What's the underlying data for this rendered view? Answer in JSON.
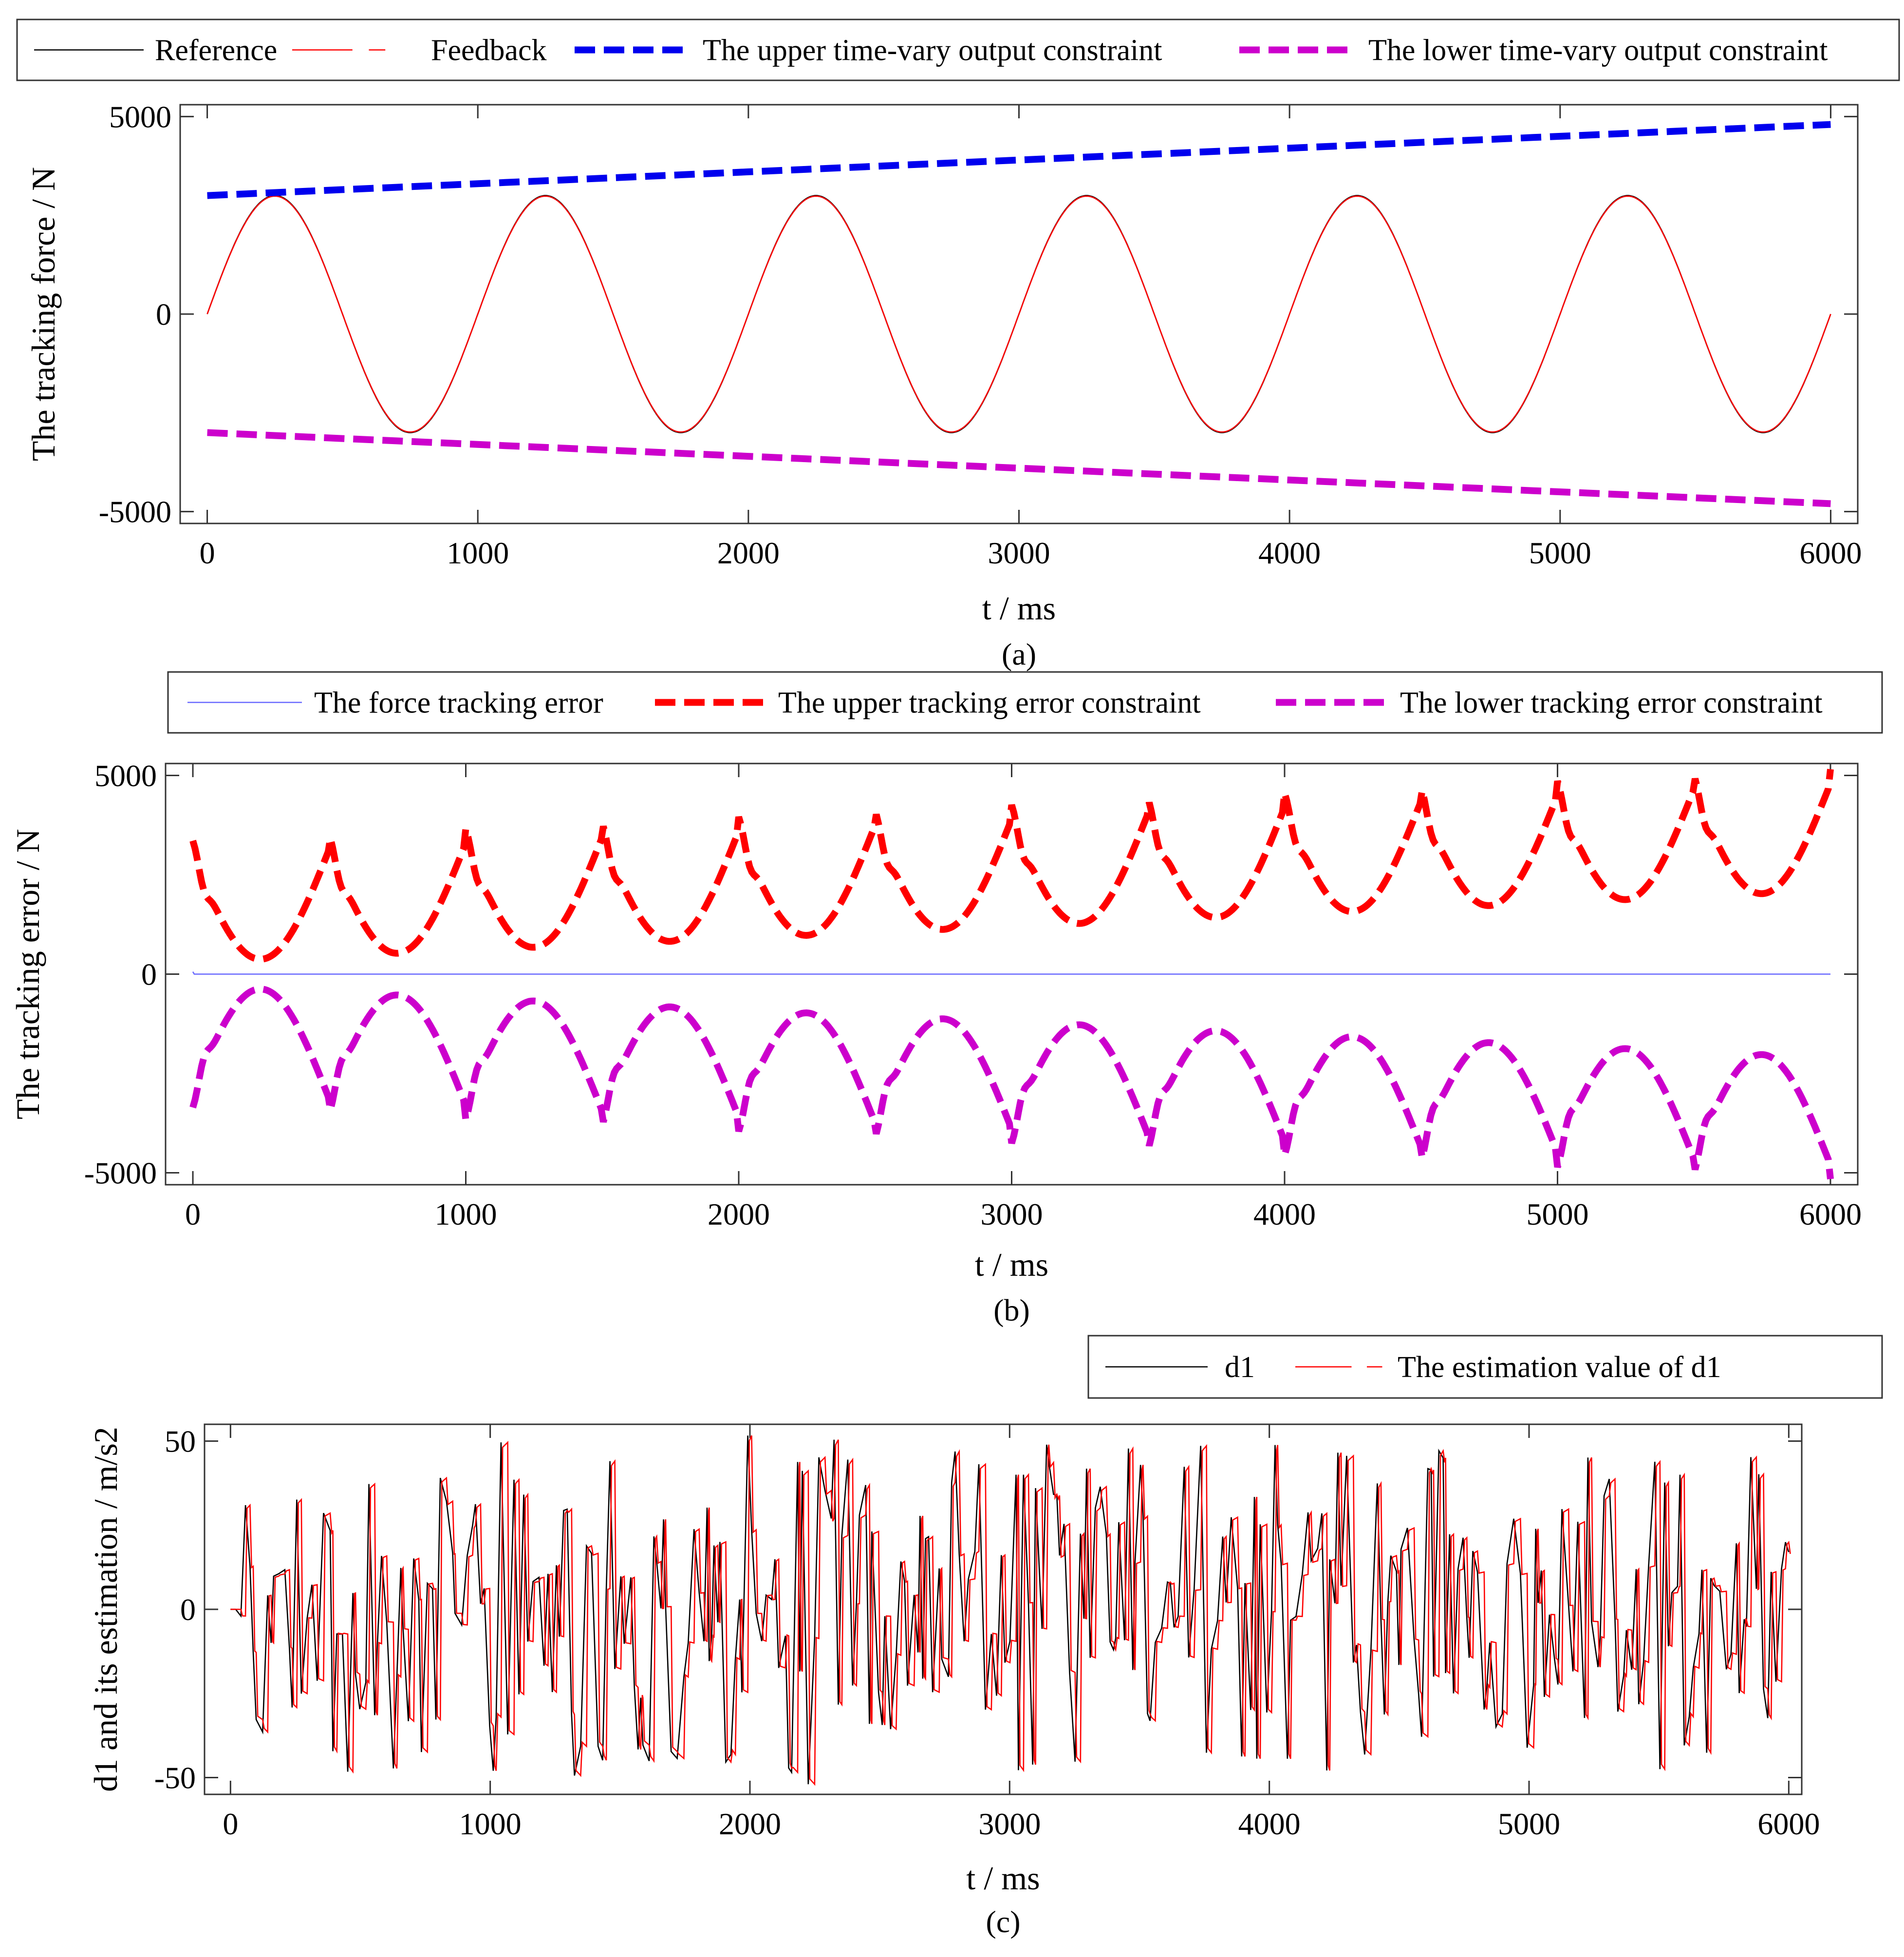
{
  "chart_data": [
    {
      "type": "line",
      "panel": "a",
      "caption": "(a)",
      "xlabel": "t / ms",
      "ylabel": "The tracking force / N",
      "xlim": [
        -100,
        6100
      ],
      "ylim": [
        -5300,
        5300
      ],
      "xticks": [
        0,
        1000,
        2000,
        3000,
        4000,
        5000,
        6000
      ],
      "yticks": [
        -5000,
        0,
        5000
      ],
      "xtick_labels": [
        "0",
        "1000",
        "2000",
        "3000",
        "4000",
        "5000",
        "6000"
      ],
      "ytick_labels": [
        "-5000",
        "0",
        "5000"
      ],
      "legend_position": "top (above plot)",
      "series": [
        {
          "name": "Reference",
          "color": "#000000",
          "style": "solid",
          "kind": "sine",
          "amplitude": 3000,
          "period": 1000,
          "t_start": 0,
          "t_end": 6000
        },
        {
          "name": "Feedback",
          "color": "#ff0000",
          "style": "dash-thin",
          "kind": "sine",
          "amplitude": 3000,
          "period": 1000,
          "t_start": 0,
          "t_end": 6000
        },
        {
          "name": "The upper time-vary output constraint",
          "color": "#0000ee",
          "style": "dash-thick",
          "kind": "linear",
          "x": [
            0,
            6000
          ],
          "y": [
            3000,
            4800
          ]
        },
        {
          "name": "The lower time-vary output constraint",
          "color": "#cc00cc",
          "style": "dash-thick",
          "kind": "linear",
          "x": [
            0,
            6000
          ],
          "y": [
            -3000,
            -4800
          ]
        }
      ]
    },
    {
      "type": "line",
      "panel": "b",
      "caption": "(b)",
      "xlabel": "t / ms",
      "ylabel": "The tracking error / N",
      "xlim": [
        -100,
        6100
      ],
      "ylim": [
        -5300,
        5300
      ],
      "xticks": [
        0,
        1000,
        2000,
        3000,
        4000,
        5000,
        6000
      ],
      "yticks": [
        -5000,
        0,
        5000
      ],
      "xtick_labels": [
        "0",
        "1000",
        "2000",
        "3000",
        "4000",
        "5000",
        "6000"
      ],
      "ytick_labels": [
        "-5000",
        "0",
        "5000"
      ],
      "legend_position": "top (above plot)",
      "series": [
        {
          "name": "The force tracking error",
          "color": "#6a6aff",
          "style": "solid",
          "kind": "zero",
          "t_start": 0,
          "t_end": 6000
        },
        {
          "name": "The upper tracking error constraint",
          "color": "#ff0000",
          "style": "dash-thick",
          "kind": "envelope",
          "sign": 1,
          "base_x": [
            0,
            6000
          ],
          "base_y": [
            3000,
            4800
          ]
        },
        {
          "name": "The lower tracking error constraint",
          "color": "#cc00cc",
          "style": "dash-thick",
          "kind": "envelope",
          "sign": -1,
          "base_x": [
            0,
            6000
          ],
          "base_y": [
            3000,
            4800
          ]
        }
      ]
    },
    {
      "type": "line",
      "panel": "c",
      "caption": "(c)",
      "xlabel": "t / ms",
      "ylabel": "d1 and its estimation / m/s2",
      "xlim": [
        -100,
        6050
      ],
      "ylim": [
        -55,
        55
      ],
      "xticks": [
        0,
        1000,
        2000,
        3000,
        4000,
        5000,
        6000
      ],
      "yticks": [
        -50,
        0,
        50
      ],
      "xtick_labels": [
        "0",
        "1000",
        "2000",
        "3000",
        "4000",
        "5000",
        "6000"
      ],
      "ytick_labels": [
        "-50",
        "0",
        "50"
      ],
      "legend_position": "top-right (above plot)",
      "series": [
        {
          "name": "d1",
          "color": "#000000",
          "style": "solid",
          "kind": "disturbance",
          "range": [
            -50,
            50
          ],
          "t_start": 0,
          "t_end": 6000
        },
        {
          "name": "The estimation value of d1",
          "color": "#ff0000",
          "style": "dash-thin",
          "kind": "disturbance-estimate",
          "range": [
            -50,
            50
          ],
          "t_start": 0,
          "t_end": 6000
        }
      ]
    }
  ]
}
